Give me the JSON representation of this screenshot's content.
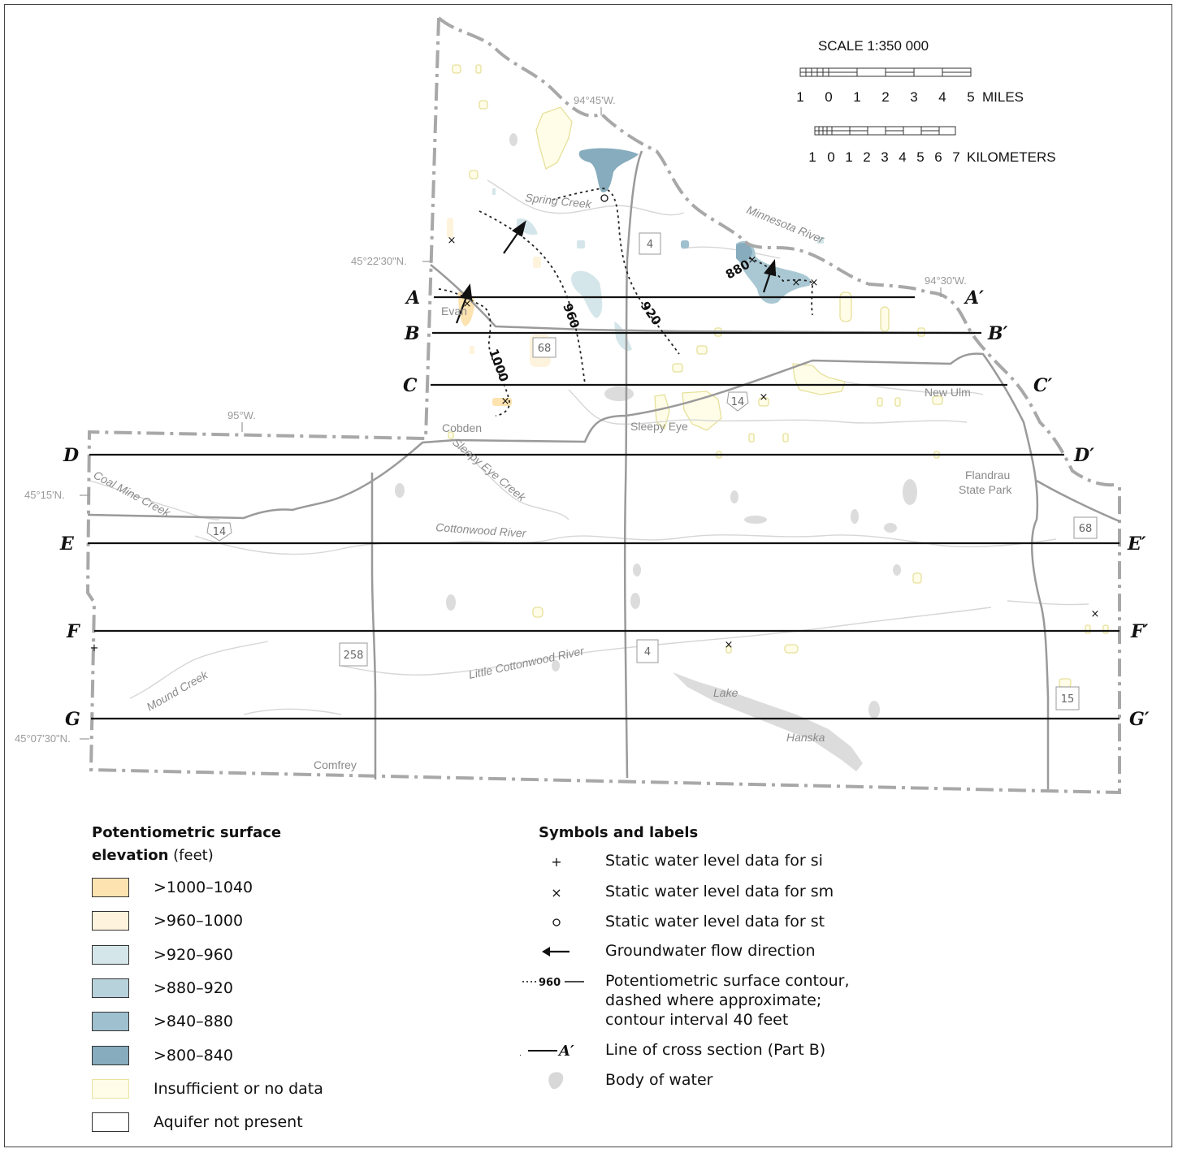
{
  "scale": {
    "title": "SCALE 1:350 000",
    "miles_ticks": [
      "1",
      "0",
      "1",
      "2",
      "3",
      "4",
      "5"
    ],
    "miles_unit": "MILES",
    "km_ticks": [
      "1",
      "0",
      "1",
      "2",
      "3",
      "4",
      "5",
      "6",
      "7"
    ],
    "km_unit": "KILOMETERS"
  },
  "coordinates": {
    "lon_9445": "94°45'W.",
    "lon_9430": "94°30'W.",
    "lon_95": "95°W.",
    "lat_452230": "45°22'30\"N.",
    "lat_4515": "45°15'N.",
    "lat_450730": "45°07'30\"N."
  },
  "places": {
    "evan": "Evan",
    "cobden": "Cobden",
    "sleepy_eye": "Sleepy Eye",
    "new_ulm": "New Ulm",
    "flandrau_1": "Flandrau",
    "flandrau_2": "State Park",
    "comfrey": "Comfrey",
    "lake": "Lake",
    "hanska": "Hanska"
  },
  "rivers": {
    "spring_creek": "Spring Creek",
    "minnesota_river": "Minnesota River",
    "sleepy_eye_creek": "Sleepy Eye Creek",
    "coal_mine_creek": "Coal Mine Creek",
    "cottonwood_river": "Cottonwood River",
    "little_cottonwood_river": "Little Cottonwood River",
    "mound_creek": "Mound Creek"
  },
  "roads": {
    "r4_north": "4",
    "r68_north": "68",
    "us14_east": "14",
    "us14_west": "14",
    "r68_east": "68",
    "r258": "258",
    "r4_south": "4",
    "r15": "15"
  },
  "contours": {
    "c1000": "1000",
    "c960": "960",
    "c920": "920",
    "c880": "880"
  },
  "sections": [
    {
      "start": "A",
      "end": "A′"
    },
    {
      "start": "B",
      "end": "B′"
    },
    {
      "start": "C",
      "end": "C′"
    },
    {
      "start": "D",
      "end": "D′"
    },
    {
      "start": "E",
      "end": "E′"
    },
    {
      "start": "F",
      "end": "F′"
    },
    {
      "start": "G",
      "end": "G′"
    }
  ],
  "legend": {
    "title_line1": "Potentiometric surface",
    "title_line2_bold": "elevation",
    "title_line2_unit": " (feet)",
    "classes": [
      {
        "label": ">1000–1040",
        "color": "#fde3b0"
      },
      {
        "label": ">960–1000",
        "color": "#fef3dc"
      },
      {
        "label": ">920–960",
        "color": "#d5e6ea"
      },
      {
        "label": ">880–920",
        "color": "#b7d2db"
      },
      {
        "label": ">840–880",
        "color": "#9fc0ce"
      },
      {
        "label": ">800–840",
        "color": "#86acbd"
      },
      {
        "label": "Insufficient or no data",
        "color": "#fffde8",
        "border": "#e8e3a0"
      },
      {
        "label": "Aquifer not present",
        "color": "#ffffff"
      }
    ]
  },
  "symbols": {
    "title": "Symbols and labels",
    "si": "Static water level data for si",
    "sm": "Static water level data for sm",
    "st": "Static water level data for st",
    "flow": "Groundwater flow direction",
    "contour_icon_label": "960",
    "contour_1": "Potentiometric surface contour,",
    "contour_2": "dashed where approximate;",
    "contour_3": "contour interval 40 feet",
    "section_icon_start": "A",
    "section_icon_end": "A′",
    "section": "Line of cross section (Part B)",
    "water": "Body of water"
  }
}
